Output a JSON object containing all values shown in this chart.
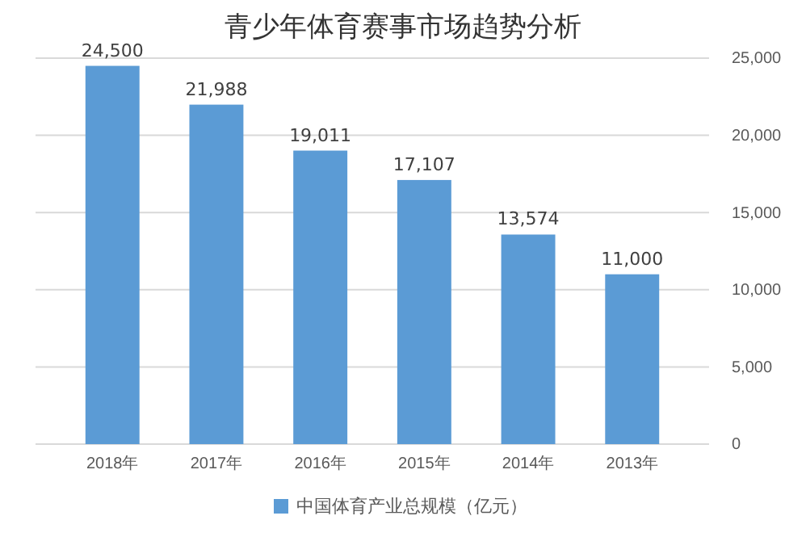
{
  "chart_data": {
    "type": "bar",
    "title": "青少年体育赛事市场趋势分析",
    "categories": [
      "2018年",
      "2017年",
      "2016年",
      "2015年",
      "2014年",
      "2013年"
    ],
    "series": [
      {
        "name": "中国体育产业总规模（亿元）",
        "color": "#5b9bd5",
        "values": [
          24500,
          21988,
          19011,
          17107,
          13574,
          11000
        ]
      }
    ],
    "value_labels": [
      "24,500",
      "21,988",
      "19,011",
      "17,107",
      "13,574",
      "11,000"
    ],
    "ylim": [
      0,
      25000
    ],
    "yticks": [
      {
        "value": 0,
        "label": "0"
      },
      {
        "value": 5000,
        "label": "5,000"
      },
      {
        "value": 10000,
        "label": "10,000"
      },
      {
        "value": 15000,
        "label": "15,000"
      },
      {
        "value": 20000,
        "label": "20,000"
      },
      {
        "value": 25000,
        "label": "25,000"
      }
    ],
    "grid": "y",
    "legend": "bottom"
  }
}
